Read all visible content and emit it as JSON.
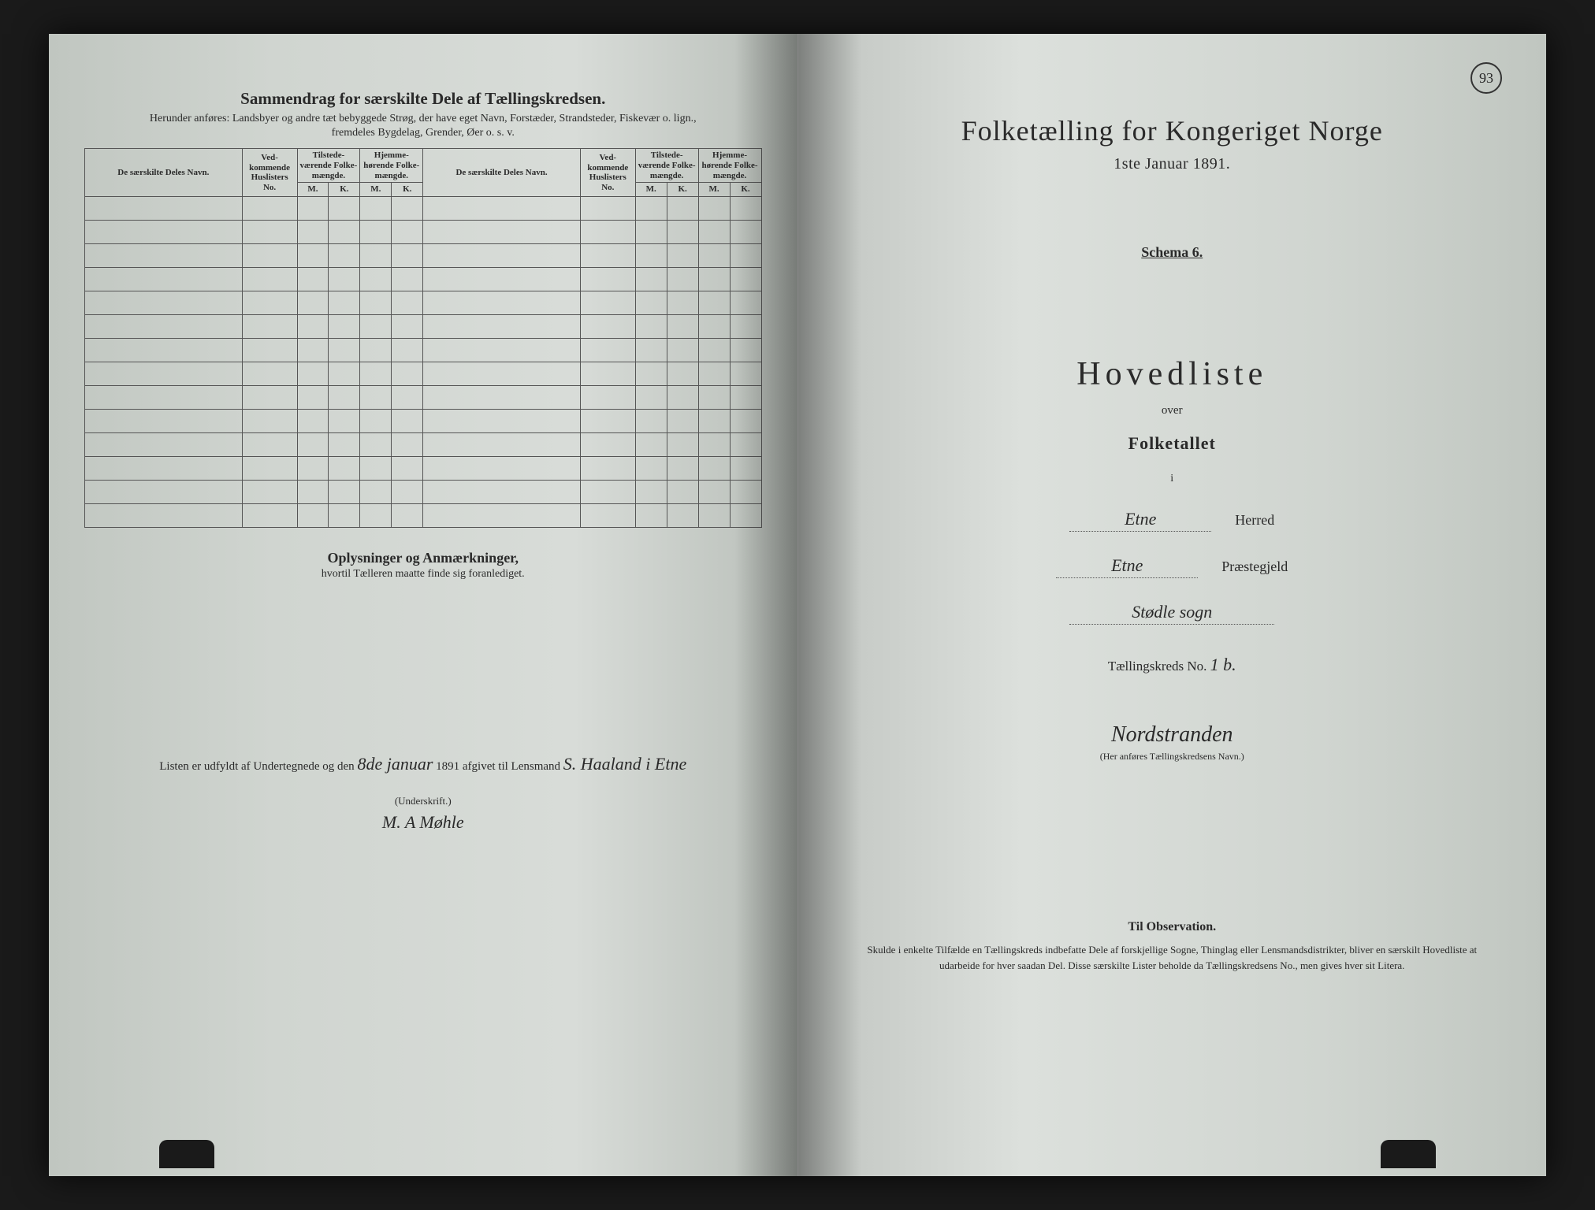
{
  "colors": {
    "paper_light": "#d8dcd8",
    "paper_dark": "#b8bfb8",
    "ink": "#2a2a2a",
    "border": "#555555",
    "background": "#1a1a1a"
  },
  "page_number": "93",
  "left": {
    "summary_title": "Sammendrag for særskilte Dele af Tællingskredsen.",
    "summary_sub": "Herunder anføres: Landsbyer og andre tæt bebyggede Strøg, der have eget Navn, Forstæder, Strandsteder, Fiskevær o. lign., fremdeles Bygdelag, Grender, Øer o. s. v.",
    "cols": {
      "name": "De særskilte Deles Navn.",
      "no": "Ved-\nkommende\nHuslisters\nNo.",
      "tilst": "Tilstede-\nværende\nFolke-\nmængde.",
      "hjem": "Hjemme-\nhørende\nFolke-\nmængde.",
      "m": "M.",
      "k": "K."
    },
    "empty_rows": 14,
    "notes_title": "Oplysninger og Anmærkninger,",
    "notes_sub": "hvortil Tælleren maatte finde sig foranlediget.",
    "filled_prefix": "Listen er udfyldt af Undertegnede og den",
    "filled_date_hand": "8de januar",
    "filled_year": "1891 afgivet til Lensmand",
    "filled_lensmand_hand": "S. Haaland i Etne",
    "underskrift_label": "(Underskrift.)",
    "signature": "M. A Møhle"
  },
  "right": {
    "census_title": "Folketælling for Kongeriget Norge",
    "census_date": "1ste Januar 1891.",
    "schema": "Schema 6.",
    "hovedliste": "Hovedliste",
    "over": "over",
    "folketallet": "Folketallet",
    "i": "i",
    "herred_value": "Etne",
    "herred_label": "Herred",
    "prest_value": "Etne",
    "prest_label": "Præstegjeld",
    "sogn_value": "Stødle sogn",
    "kreds_label": "Tællingskreds No.",
    "kreds_no": "1 b.",
    "kreds_name": "Nordstranden",
    "kreds_caption": "(Her anføres Tællingskredsens Navn.)",
    "obs_title": "Til Observation.",
    "obs_body": "Skulde i enkelte Tilfælde en Tællingskreds indbefatte Dele af forskjellige Sogne, Thinglag eller Lensmandsdistrikter, bliver en særskilt Hovedliste at udarbeide for hver saadan Del. Disse særskilte Lister beholde da Tællingskredsens No., men gives hver sit Litera."
  }
}
